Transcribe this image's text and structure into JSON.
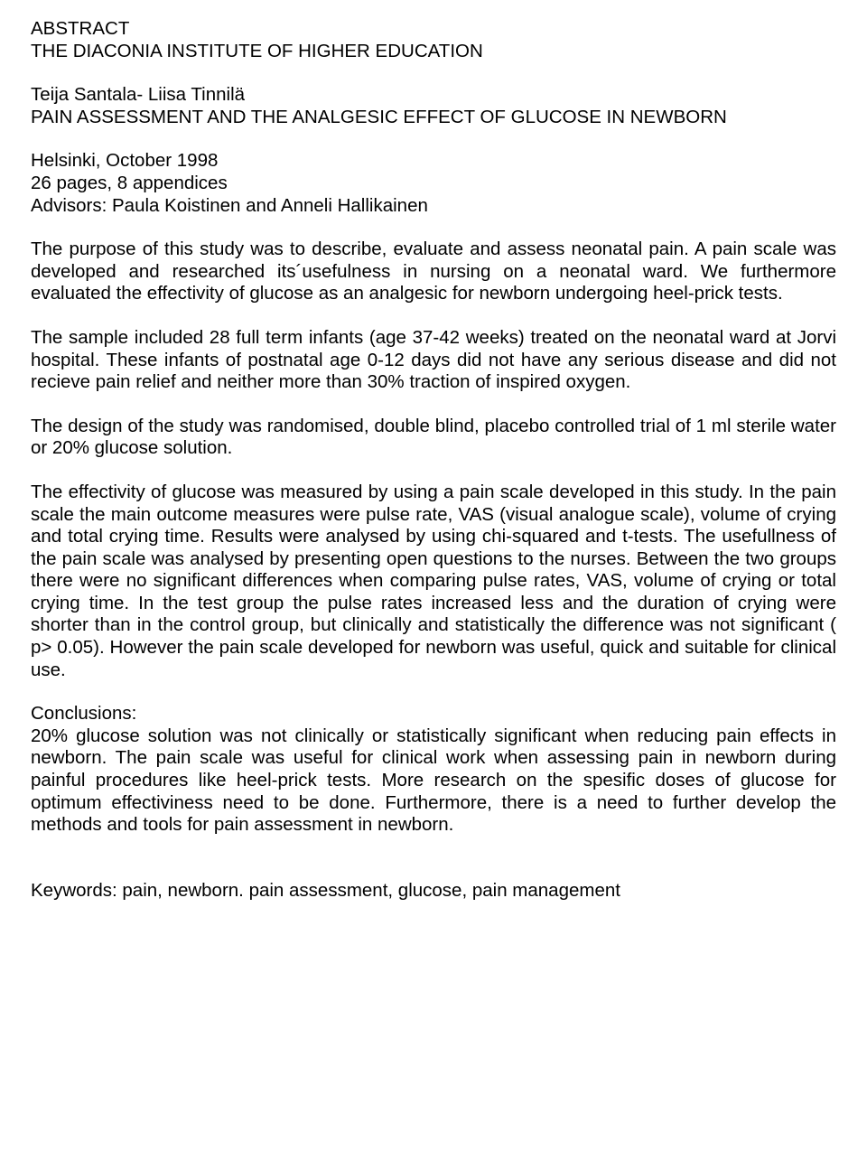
{
  "header": {
    "line1": "ABSTRACT",
    "line2": "THE DIACONIA INSTITUTE OF HIGHER EDUCATION",
    "authors": "Teija Santala- Liisa Tinnilä",
    "title": "PAIN ASSESSMENT AND THE ANALGESIC EFFECT OF GLUCOSE IN NEWBORN",
    "location": "Helsinki, October 1998",
    "pages": "26 pages, 8 appendices",
    "advisors": "Advisors: Paula Koistinen and Anneli Hallikainen"
  },
  "body": {
    "para1": "The purpose of this study was to describe, evaluate and assess neonatal pain. A pain scale was developed and researched its´usefulness in nursing on a neonatal ward. We furthermore evaluated the effectivity of glucose as an analgesic for newborn undergoing heel-prick tests.",
    "para2": "The sample included 28 full term infants (age 37-42 weeks) treated on the neonatal ward at Jorvi hospital. These infants of postnatal age 0-12 days did not have any serious disease and did not recieve pain relief and neither more than 30% traction of inspired oxygen.",
    "para3": "The design of the study was randomised, double blind, placebo controlled trial of 1 ml sterile water or 20% glucose solution.",
    "para4": "The effectivity of glucose was measured by using a pain scale developed in this study. In the pain scale the main outcome measures were pulse rate, VAS (visual analogue scale), volume of crying and total crying time. Results were analysed by using chi-squared and t-tests. The usefullness of the pain scale was analysed by presenting open questions to the nurses. Between the two groups there were no significant differences when comparing pulse rates, VAS, volume of crying or total crying time. In the test group the pulse rates increased less and the duration of crying were shorter than in the control group, but clinically and statistically the difference was not significant ( p> 0.05). However the pain scale developed for newborn was useful, quick and suitable for clinical use.",
    "conclusions_label": "Conclusions:",
    "conclusions": "20% glucose solution was not clinically or statistically significant when reducing pain effects in newborn. The pain scale was useful for clinical work when assessing pain in newborn during painful procedures like heel-prick tests. More research on the spesific doses of glucose for optimum effectiviness need to be done. Furthermore, there is a need to further develop the methods and tools for pain assessment in newborn."
  },
  "keywords": "Keywords: pain, newborn. pain assessment, glucose, pain management"
}
